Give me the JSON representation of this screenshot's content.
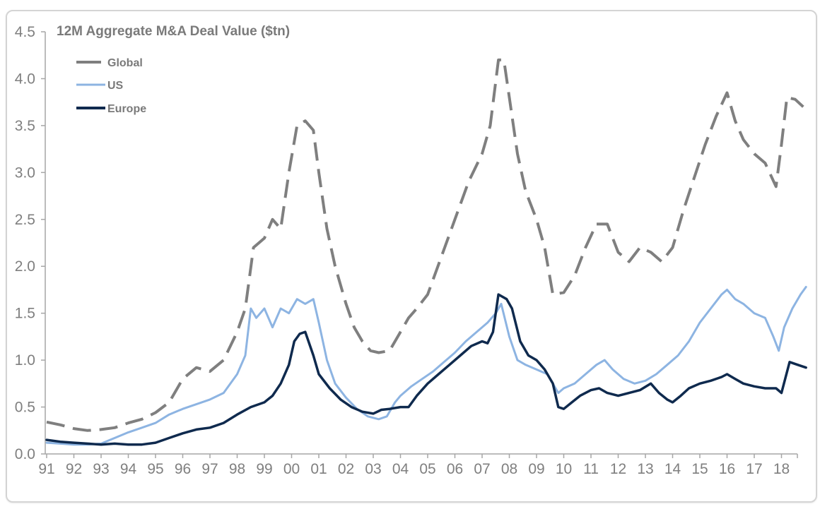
{
  "chart_data": {
    "type": "line",
    "title": "12M Aggregate M&A Deal Value ($tn)",
    "xlabel": "",
    "ylabel": "",
    "ylim": [
      0,
      4.5
    ],
    "xlim": [
      1991,
      2018.9
    ],
    "yticks": [
      "0.0",
      "0.5",
      "1.0",
      "1.5",
      "2.0",
      "2.5",
      "3.0",
      "3.5",
      "4.0",
      "4.5"
    ],
    "ytick_values": [
      0,
      0.5,
      1.0,
      1.5,
      2.0,
      2.5,
      3.0,
      3.5,
      4.0,
      4.5
    ],
    "xticks": [
      "91",
      "92",
      "93",
      "94",
      "95",
      "96",
      "97",
      "98",
      "99",
      "00",
      "01",
      "02",
      "03",
      "04",
      "05",
      "06",
      "07",
      "08",
      "09",
      "10",
      "11",
      "12",
      "13",
      "14",
      "15",
      "16",
      "17",
      "18"
    ],
    "xtick_values": [
      1991,
      1992,
      1993,
      1994,
      1995,
      1996,
      1997,
      1998,
      1999,
      2000,
      2001,
      2002,
      2003,
      2004,
      2005,
      2006,
      2007,
      2008,
      2009,
      2010,
      2011,
      2012,
      2013,
      2014,
      2015,
      2016,
      2017,
      2018
    ],
    "grid": false,
    "legend_position": "top-left",
    "series": [
      {
        "name": "Global",
        "color": "#7f7f7f",
        "style": "dashed",
        "x": [
          1991.0,
          1991.5,
          1992.0,
          1992.5,
          1993.0,
          1993.5,
          1994.0,
          1994.5,
          1995.0,
          1995.5,
          1996.0,
          1996.5,
          1997.0,
          1997.5,
          1998.0,
          1998.3,
          1998.6,
          1999.0,
          1999.3,
          1999.6,
          1999.9,
          2000.2,
          2000.5,
          2000.8,
          2001.0,
          2001.3,
          2001.6,
          2002.0,
          2002.3,
          2002.6,
          2002.9,
          2003.2,
          2003.6,
          2004.0,
          2004.3,
          2004.6,
          2005.0,
          2005.5,
          2006.0,
          2006.5,
          2007.0,
          2007.3,
          2007.6,
          2007.8,
          2008.0,
          2008.3,
          2008.6,
          2009.0,
          2009.3,
          2009.6,
          2010.0,
          2010.4,
          2010.8,
          2011.2,
          2011.6,
          2012.0,
          2012.4,
          2012.8,
          2013.2,
          2013.6,
          2014.0,
          2014.4,
          2014.8,
          2015.2,
          2015.6,
          2016.0,
          2016.3,
          2016.6,
          2017.0,
          2017.4,
          2017.8,
          2018.0,
          2018.2,
          2018.5,
          2018.8
        ],
        "values": [
          0.34,
          0.31,
          0.27,
          0.25,
          0.26,
          0.28,
          0.33,
          0.37,
          0.44,
          0.55,
          0.8,
          0.92,
          0.88,
          1.0,
          1.3,
          1.55,
          2.2,
          2.3,
          2.5,
          2.4,
          3.0,
          3.5,
          3.55,
          3.45,
          3.0,
          2.4,
          2.0,
          1.6,
          1.35,
          1.2,
          1.1,
          1.08,
          1.1,
          1.3,
          1.45,
          1.55,
          1.7,
          2.1,
          2.5,
          2.9,
          3.2,
          3.5,
          4.2,
          4.2,
          3.8,
          3.2,
          2.8,
          2.5,
          2.2,
          1.7,
          1.72,
          1.9,
          2.2,
          2.45,
          2.45,
          2.15,
          2.05,
          2.2,
          2.15,
          2.05,
          2.2,
          2.6,
          2.95,
          3.3,
          3.6,
          3.85,
          3.55,
          3.35,
          3.2,
          3.1,
          2.85,
          3.3,
          3.8,
          3.78,
          3.7
        ]
      },
      {
        "name": "US",
        "color": "#8db4e2",
        "style": "solid",
        "x": [
          1991.0,
          1991.5,
          1992.0,
          1992.5,
          1993.0,
          1993.5,
          1994.0,
          1994.5,
          1995.0,
          1995.5,
          1996.0,
          1996.5,
          1997.0,
          1997.5,
          1998.0,
          1998.3,
          1998.5,
          1998.7,
          1999.0,
          1999.3,
          1999.6,
          1999.9,
          2000.2,
          2000.5,
          2000.8,
          2001.0,
          2001.3,
          2001.6,
          2002.0,
          2002.4,
          2002.8,
          2003.2,
          2003.5,
          2003.8,
          2004.0,
          2004.4,
          2004.8,
          2005.2,
          2005.6,
          2006.0,
          2006.4,
          2006.8,
          2007.2,
          2007.5,
          2007.7,
          2008.0,
          2008.3,
          2008.6,
          2009.0,
          2009.4,
          2009.8,
          2010.0,
          2010.4,
          2010.8,
          2011.2,
          2011.5,
          2011.8,
          2012.2,
          2012.6,
          2013.0,
          2013.4,
          2013.8,
          2014.2,
          2014.6,
          2015.0,
          2015.4,
          2015.8,
          2016.0,
          2016.3,
          2016.6,
          2017.0,
          2017.4,
          2017.7,
          2017.9,
          2018.1,
          2018.4,
          2018.7,
          2018.9
        ],
        "values": [
          0.12,
          0.11,
          0.1,
          0.1,
          0.11,
          0.17,
          0.23,
          0.28,
          0.33,
          0.42,
          0.48,
          0.53,
          0.58,
          0.65,
          0.85,
          1.05,
          1.55,
          1.45,
          1.55,
          1.35,
          1.55,
          1.5,
          1.65,
          1.6,
          1.65,
          1.4,
          1.0,
          0.75,
          0.6,
          0.48,
          0.4,
          0.37,
          0.4,
          0.55,
          0.62,
          0.72,
          0.8,
          0.88,
          0.98,
          1.08,
          1.2,
          1.3,
          1.4,
          1.5,
          1.6,
          1.25,
          1.0,
          0.95,
          0.9,
          0.85,
          0.65,
          0.7,
          0.75,
          0.85,
          0.95,
          1.0,
          0.9,
          0.8,
          0.75,
          0.78,
          0.85,
          0.95,
          1.05,
          1.2,
          1.4,
          1.55,
          1.7,
          1.75,
          1.65,
          1.6,
          1.5,
          1.45,
          1.25,
          1.1,
          1.35,
          1.55,
          1.7,
          1.78
        ]
      },
      {
        "name": "Europe",
        "color": "#0f2a4e",
        "style": "solid",
        "x": [
          1991.0,
          1991.5,
          1992.0,
          1992.5,
          1993.0,
          1993.5,
          1994.0,
          1994.5,
          1995.0,
          1995.5,
          1996.0,
          1996.5,
          1997.0,
          1997.5,
          1998.0,
          1998.5,
          1999.0,
          1999.3,
          1999.6,
          1999.9,
          2000.1,
          2000.3,
          2000.5,
          2000.8,
          2001.0,
          2001.4,
          2001.8,
          2002.2,
          2002.6,
          2003.0,
          2003.3,
          2003.6,
          2004.0,
          2004.3,
          2004.6,
          2005.0,
          2005.4,
          2005.8,
          2006.2,
          2006.6,
          2007.0,
          2007.2,
          2007.4,
          2007.6,
          2007.9,
          2008.1,
          2008.4,
          2008.7,
          2009.0,
          2009.3,
          2009.6,
          2009.8,
          2010.0,
          2010.3,
          2010.6,
          2011.0,
          2011.3,
          2011.6,
          2012.0,
          2012.4,
          2012.8,
          2013.2,
          2013.5,
          2013.8,
          2014.0,
          2014.3,
          2014.6,
          2015.0,
          2015.4,
          2015.8,
          2016.0,
          2016.3,
          2016.6,
          2017.0,
          2017.4,
          2017.8,
          2018.0,
          2018.3,
          2018.6,
          2018.9
        ],
        "values": [
          0.15,
          0.13,
          0.12,
          0.11,
          0.1,
          0.11,
          0.1,
          0.1,
          0.12,
          0.17,
          0.22,
          0.26,
          0.28,
          0.33,
          0.42,
          0.5,
          0.55,
          0.62,
          0.75,
          0.95,
          1.2,
          1.28,
          1.3,
          1.05,
          0.85,
          0.7,
          0.58,
          0.5,
          0.45,
          0.43,
          0.47,
          0.48,
          0.5,
          0.5,
          0.62,
          0.75,
          0.85,
          0.95,
          1.05,
          1.15,
          1.2,
          1.18,
          1.3,
          1.7,
          1.65,
          1.55,
          1.2,
          1.05,
          1.0,
          0.9,
          0.75,
          0.5,
          0.48,
          0.55,
          0.62,
          0.68,
          0.7,
          0.65,
          0.62,
          0.65,
          0.68,
          0.75,
          0.65,
          0.58,
          0.55,
          0.62,
          0.7,
          0.75,
          0.78,
          0.82,
          0.85,
          0.8,
          0.75,
          0.72,
          0.7,
          0.7,
          0.65,
          0.98,
          0.95,
          0.92
        ]
      }
    ]
  }
}
